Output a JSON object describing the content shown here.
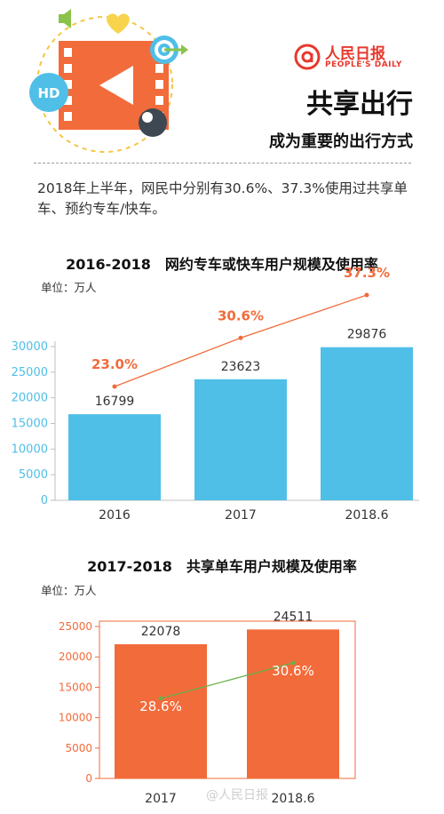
{
  "header": {
    "logo_text": "人民日报",
    "logo_sub": "PEOPLE'S DAILY",
    "title": "共享出行",
    "subtitle": "成为重要的出行方式",
    "hd_badge": "HD",
    "icons": [
      "film-icon",
      "heart-icon",
      "target-icon",
      "sound-icon",
      "play-icon"
    ]
  },
  "intro_text": "2018年上半年，网民中分别有30.6%、37.3%使用过共享单车、预约专车/快车。",
  "colors": {
    "blue": "#4fbfe8",
    "orange": "#f26b3a",
    "green": "#6ab04c",
    "title_red": "#e8392d"
  },
  "chart_data": [
    {
      "type": "bar",
      "title": "2016-2018　网约专车或快车用户规模及使用率",
      "unit_label": "单位：万人",
      "categories": [
        "2016",
        "2017",
        "2018.6"
      ],
      "series": [
        {
          "values": [
            16799,
            23623,
            29876
          ],
          "value_labels": [
            "16799",
            "23623",
            "29876"
          ],
          "color": "#4fbfe8"
        }
      ],
      "rate_line": {
        "values": [
          23.0,
          30.6,
          37.3
        ],
        "labels": [
          "23.0%",
          "30.6%",
          "37.3%"
        ],
        "color": "#f26b3a"
      },
      "y_ticks": [
        "0",
        "5000",
        "10000",
        "15000",
        "20000",
        "25000",
        "30000"
      ],
      "ylim": [
        0,
        30000
      ],
      "grid": false
    },
    {
      "type": "bar",
      "title": "2017-2018　共享单车用户规模及使用率",
      "unit_label": "单位：万人",
      "categories": [
        "2017",
        "2018.6"
      ],
      "series": [
        {
          "values": [
            22078,
            24511
          ],
          "value_labels": [
            "22078",
            "24511"
          ],
          "color": "#f26b3a"
        }
      ],
      "rate_line": {
        "values": [
          28.6,
          30.6
        ],
        "labels": [
          "28.6%",
          "30.6%"
        ],
        "color": "#6ab04c"
      },
      "y_ticks": [
        "0",
        "5000",
        "10000",
        "15000",
        "20000",
        "25000"
      ],
      "ylim": [
        0,
        25000
      ],
      "grid": false
    }
  ],
  "watermark": "@人民日报"
}
